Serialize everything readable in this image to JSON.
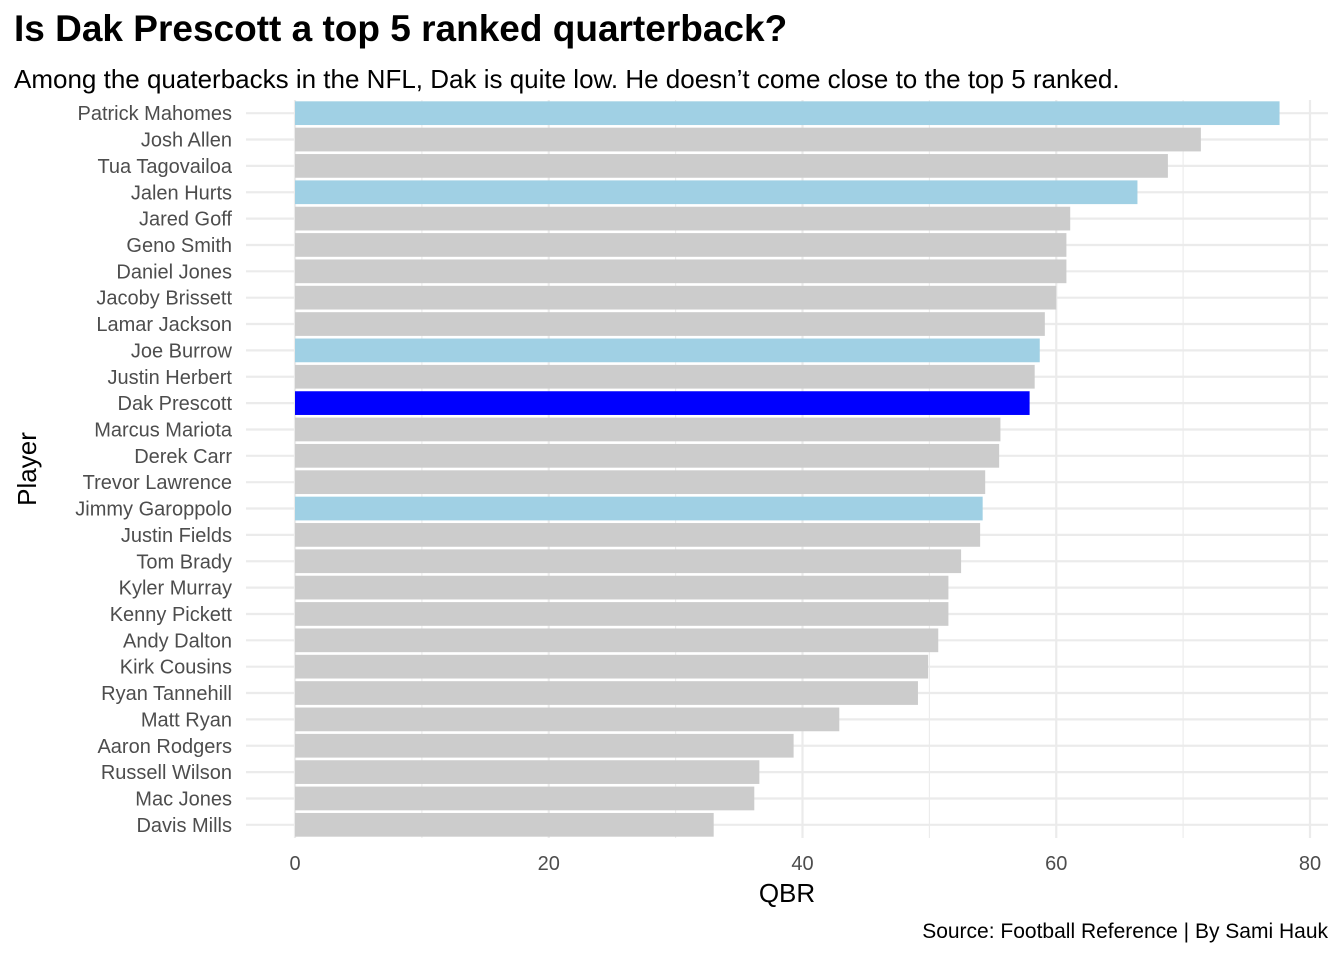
{
  "title": "Is Dak Prescott a top 5 ranked quarterback?",
  "subtitle": "Among the quaterbacks in the NFL, Dak is quite low. He doesn’t come close to the top 5 ranked.",
  "caption": "Source: Football Reference | By Sami Hauk",
  "colors": {
    "default": "#cccccc",
    "highlight": "#a0d0e4",
    "dak": "#0000ff",
    "grid": "#ebebeb"
  },
  "chart_data": {
    "type": "bar",
    "orientation": "horizontal",
    "xlabel": "QBR",
    "ylabel": "Player",
    "xlim": [
      0,
      80
    ],
    "xticks": [
      0,
      20,
      40,
      60,
      80
    ],
    "grid": true,
    "legend": "none",
    "categories": [
      "Patrick Mahomes",
      "Josh Allen",
      "Tua Tagovailoa",
      "Jalen Hurts",
      "Jared Goff",
      "Geno Smith",
      "Daniel Jones",
      "Jacoby Brissett",
      "Lamar Jackson",
      "Joe Burrow",
      "Justin Herbert",
      "Dak Prescott",
      "Marcus Mariota",
      "Derek Carr",
      "Trevor Lawrence",
      "Jimmy Garoppolo",
      "Justin Fields",
      "Tom Brady",
      "Kyler Murray",
      "Kenny Pickett",
      "Andy Dalton",
      "Kirk Cousins",
      "Ryan Tannehill",
      "Matt Ryan",
      "Aaron Rodgers",
      "Russell Wilson",
      "Mac Jones",
      "Davis Mills"
    ],
    "values": [
      77.6,
      71.4,
      68.8,
      66.4,
      61.1,
      60.8,
      60.8,
      60.0,
      59.1,
      58.7,
      58.3,
      57.9,
      55.6,
      55.5,
      54.4,
      54.2,
      54.0,
      52.5,
      51.5,
      51.5,
      50.7,
      49.9,
      49.1,
      42.9,
      39.3,
      36.6,
      36.2,
      33.0
    ],
    "groups": [
      "highlight",
      "default",
      "default",
      "highlight",
      "default",
      "default",
      "default",
      "default",
      "default",
      "highlight",
      "default",
      "dak",
      "default",
      "default",
      "default",
      "highlight",
      "default",
      "default",
      "default",
      "default",
      "default",
      "default",
      "default",
      "default",
      "default",
      "default",
      "default",
      "default"
    ]
  }
}
